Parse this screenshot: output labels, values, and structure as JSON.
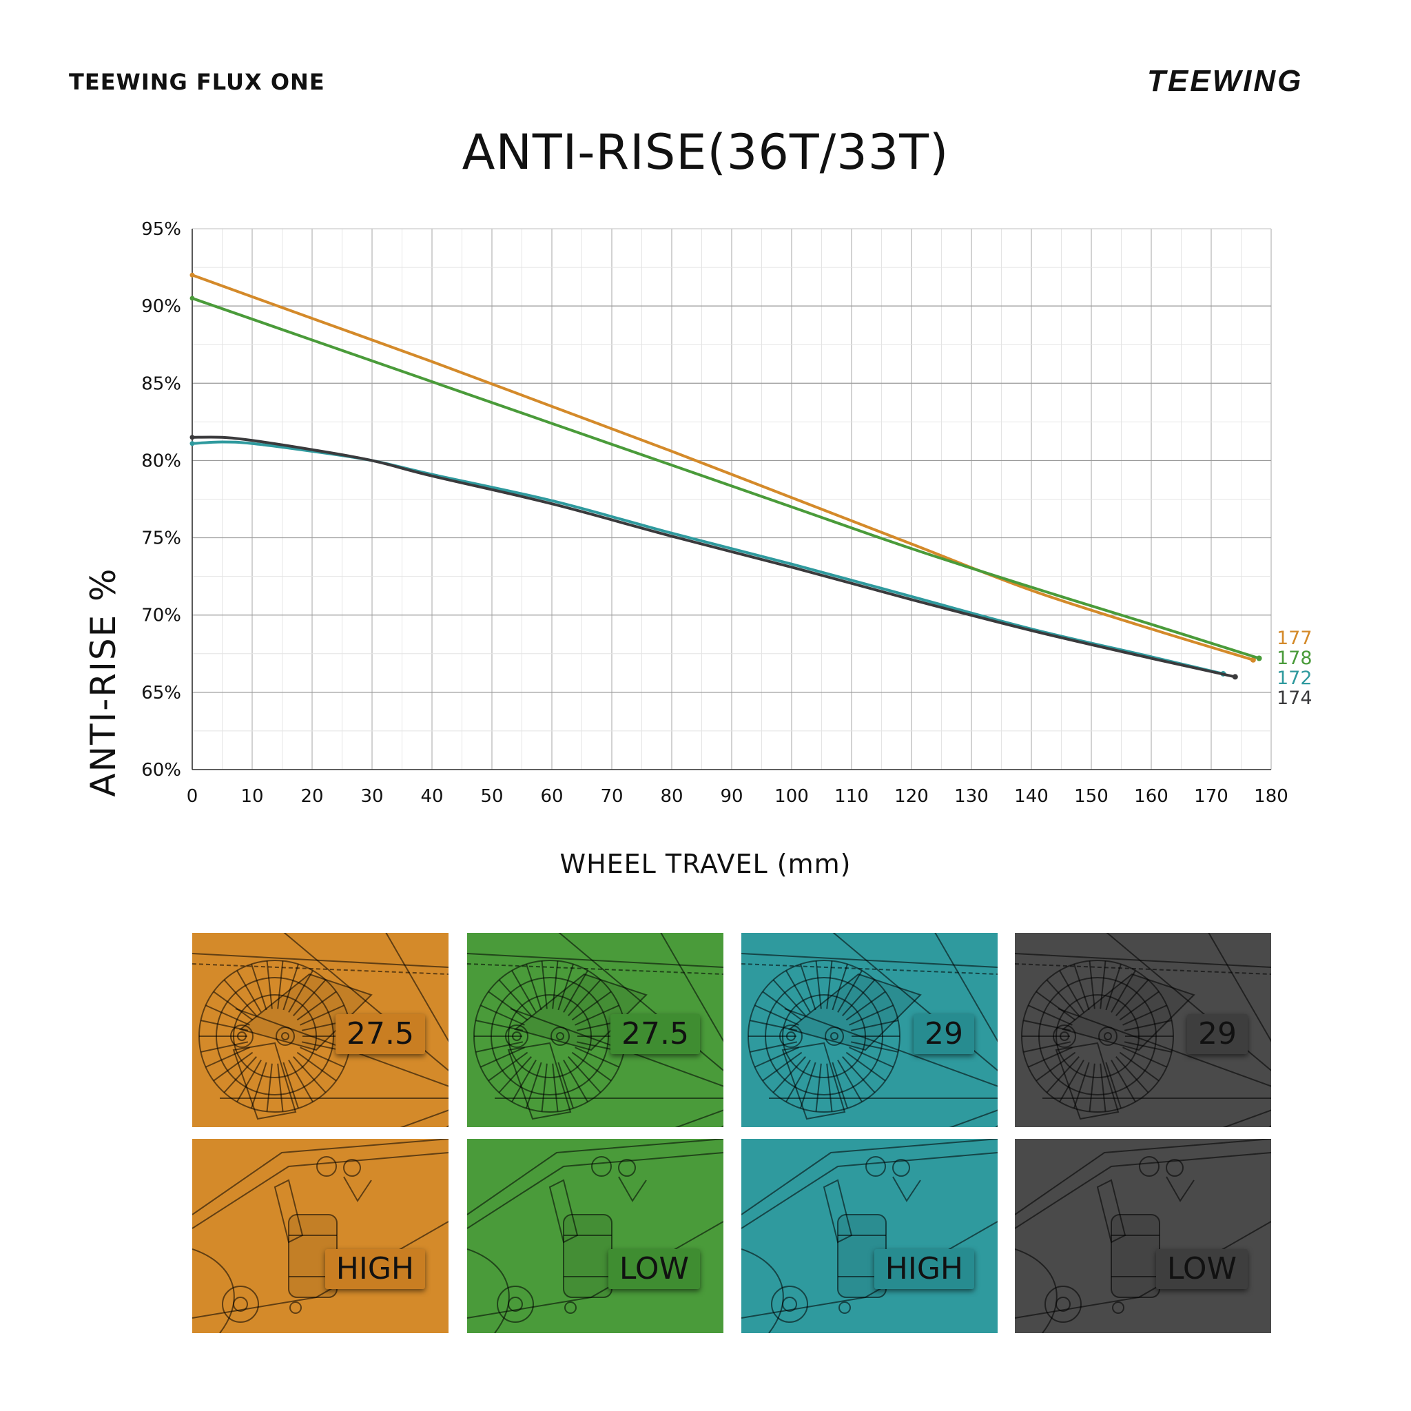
{
  "header": {
    "model": "TEEWING FLUX ONE",
    "logo_text": "TEEWING"
  },
  "chart_data": {
    "type": "line",
    "title": "ANTI-RISE(36T/33T)",
    "xlabel": "WHEEL TRAVEL (mm)",
    "ylabel": "ANTI-RISE  %",
    "xlim": [
      0,
      180
    ],
    "ylim": [
      60,
      95
    ],
    "x_ticks": [
      "0",
      "10",
      "20",
      "30",
      "40",
      "50",
      "60",
      "70",
      "80",
      "90",
      "100",
      "110",
      "120",
      "130",
      "140",
      "150",
      "160",
      "170",
      "180"
    ],
    "y_ticks": [
      "60%",
      "65%",
      "70%",
      "75%",
      "80%",
      "85%",
      "90%",
      "95%"
    ],
    "grid": true,
    "series": [
      {
        "name": "177",
        "color": "#D48A2A",
        "x": [
          0,
          20,
          40,
          60,
          80,
          100,
          120,
          140,
          160,
          177
        ],
        "y": [
          92.0,
          89.2,
          86.4,
          83.5,
          80.6,
          77.6,
          74.6,
          71.6,
          69.1,
          67.1
        ]
      },
      {
        "name": "178",
        "color": "#4A9B3A",
        "x": [
          0,
          20,
          40,
          60,
          80,
          100,
          120,
          140,
          160,
          178
        ],
        "y": [
          90.5,
          87.8,
          85.1,
          82.4,
          79.7,
          77.0,
          74.3,
          71.8,
          69.4,
          67.2
        ]
      },
      {
        "name": "172",
        "color": "#2F9A9E",
        "x": [
          0,
          5,
          10,
          20,
          30,
          40,
          60,
          80,
          100,
          120,
          140,
          160,
          172
        ],
        "y": [
          81.1,
          81.2,
          81.1,
          80.6,
          80.0,
          79.1,
          77.4,
          75.3,
          73.3,
          71.2,
          69.1,
          67.3,
          66.2
        ]
      },
      {
        "name": "174",
        "color": "#3A3A3C",
        "x": [
          0,
          5,
          10,
          20,
          30,
          40,
          60,
          80,
          100,
          120,
          140,
          160,
          174
        ],
        "y": [
          81.5,
          81.5,
          81.3,
          80.7,
          80.0,
          79.0,
          77.2,
          75.1,
          73.1,
          71.0,
          69.0,
          67.2,
          66.0
        ]
      }
    ]
  },
  "configs": [
    {
      "wheel": "27.5",
      "position": "HIGH",
      "color": "#D48A2A",
      "tag_color": "#C97E22"
    },
    {
      "wheel": "27.5",
      "position": "LOW",
      "color": "#4A9B3A",
      "tag_color": "#3F8D31"
    },
    {
      "wheel": "29",
      "position": "HIGH",
      "color": "#2F9A9E",
      "tag_color": "#278C90"
    },
    {
      "wheel": "29",
      "position": "LOW",
      "color": "#4A4A4A",
      "tag_color": "#3E3E3E"
    }
  ]
}
